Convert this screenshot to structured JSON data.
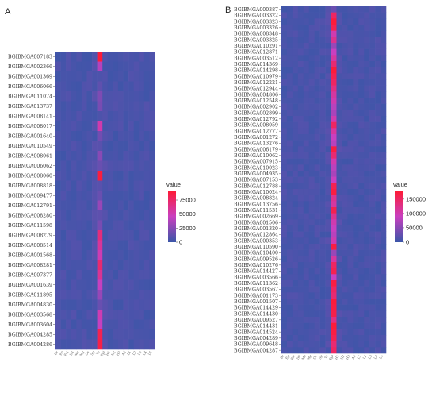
{
  "colors": {
    "low": "#3a56a8",
    "mid": "#c93fbf",
    "high": "#ff1a33"
  },
  "chart_data": [
    {
      "panel": "A",
      "type": "heatmap",
      "legend_title": "value",
      "legend_ticks": [
        "75000",
        "50000",
        "25000",
        "0"
      ],
      "legend_tick_values": [
        75000,
        50000,
        25000,
        0
      ],
      "value_range": [
        0,
        92000
      ],
      "columns": [
        "Br",
        "Ep",
        "Fat",
        "Int",
        "Ma",
        "Mg",
        "Ov",
        "Sg",
        "Te",
        "Epi",
        "H1",
        "H2",
        "H3",
        "Ad",
        "L1",
        "L2",
        "L3",
        "L4",
        "L5"
      ],
      "rows": [
        "BGIBMGA007183",
        "BGIBMGA002366",
        "BGIBMGA001369",
        "BGIBMGA006066",
        "BGIBMGA011074",
        "BGIBMGA013737",
        "BGIBMGA008141",
        "BGIBMGA008017",
        "BGIBMGA001640",
        "BGIBMGA010549",
        "BGIBMGA008061",
        "BGIBMGA006062",
        "BGIBMGA008060",
        "BGIBMGA008818",
        "BGIBMGA009477",
        "BGIBMGA012791",
        "BGIBMGA008280",
        "BGIBMGA011598",
        "BGIBMGA008279",
        "BGIBMGA008514",
        "BGIBMGA001568",
        "BGIBMGA008281",
        "BGIBMGA007377",
        "BGIBMGA001639",
        "BGIBMGA011895",
        "BGIBMGA004830",
        "BGIBMGA003568",
        "BGIBMGA003604",
        "BGIBMGA004285",
        "BGIBMGA004286"
      ],
      "hot_column": 8,
      "hot_values": [
        90000,
        40000,
        6000,
        12000,
        22000,
        20000,
        6000,
        52000,
        18000,
        10000,
        25000,
        15000,
        88000,
        10000,
        15000,
        30000,
        12000,
        20000,
        68000,
        58000,
        50000,
        72000,
        60000,
        45000,
        30000,
        15000,
        50000,
        45000,
        82000,
        85000
      ]
    },
    {
      "panel": "B",
      "type": "heatmap",
      "legend_title": "value",
      "legend_ticks": [
        "150000",
        "100000",
        "50000",
        "0"
      ],
      "legend_tick_values": [
        150000,
        100000,
        50000,
        0
      ],
      "value_range": [
        0,
        180000
      ],
      "columns": [
        "Br",
        "Ep",
        "Fat",
        "Int",
        "Ma",
        "Mg",
        "Ov",
        "Sg",
        "Te",
        "Epi",
        "H1",
        "H2",
        "H3",
        "Ad",
        "L1",
        "L2",
        "L3",
        "L4",
        "L5"
      ],
      "rows": [
        "BGIBMGA000387",
        "BGIBMGA003322",
        "BGIBMGA003323",
        "BGIBMGA003326",
        "BGIBMGA008348",
        "BGIBMGA003325",
        "BGIBMGA010291",
        "BGIBMGA012871",
        "BGIBMGA003512",
        "BGIBMGA014369",
        "BGIBMGA014298",
        "BGIBMGA010979",
        "BGIBMGA012221",
        "BGIBMGA012944",
        "BGIBMGA004806",
        "BGIBMGA012548",
        "BGIBMGA002902",
        "BGIBMGA002899",
        "BGIBMGA012792",
        "BGIBMGA008059",
        "BGIBMGA012777",
        "BGIBMGA001272",
        "BGIBMGA013276",
        "BGIBMGA006179",
        "BGIBMGA010062",
        "BGIBMGA007915",
        "BGIBMGA010023",
        "BGIBMGA004935",
        "BGIBMGA007153",
        "BGIBMGA012788",
        "BGIBMGA010024",
        "BGIBMGA008824",
        "BGIBMGA013756",
        "BGIBMGA011531",
        "BGIBMGA002669",
        "BGIBMGA001506",
        "BGIBMGA001320",
        "BGIBMGA012864",
        "BGIBMGA000353",
        "BGIBMGA010590",
        "BGIBMGA010400",
        "BGIBMGA009526",
        "BGIBMGA010276",
        "BGIBMGA014427",
        "BGIBMGA003566",
        "BGIBMGA011362",
        "BGIBMGA003567",
        "BGIBMGA001173",
        "BGIBMGA001507",
        "BGIBMGA014429",
        "BGIBMGA014430",
        "BGIBMGA009527",
        "BGIBMGA014431",
        "BGIBMGA014524",
        "BGIBMGA004289",
        "BGIBMGA009648",
        "BGIBMGA004287"
      ],
      "hot_column": 9,
      "hot_values": [
        30000,
        150000,
        175000,
        160000,
        100000,
        120000,
        60000,
        90000,
        110000,
        140000,
        175000,
        160000,
        150000,
        130000,
        110000,
        100000,
        80000,
        70000,
        100000,
        150000,
        110000,
        90000,
        80000,
        170000,
        140000,
        100000,
        80000,
        70000,
        90000,
        160000,
        170000,
        120000,
        110000,
        160000,
        120000,
        100000,
        90000,
        80000,
        100000,
        170000,
        60000,
        110000,
        150000,
        160000,
        90000,
        170000,
        150000,
        140000,
        175000,
        170000,
        165000,
        130000,
        175000,
        170000,
        160000,
        140000,
        150000
      ]
    }
  ]
}
